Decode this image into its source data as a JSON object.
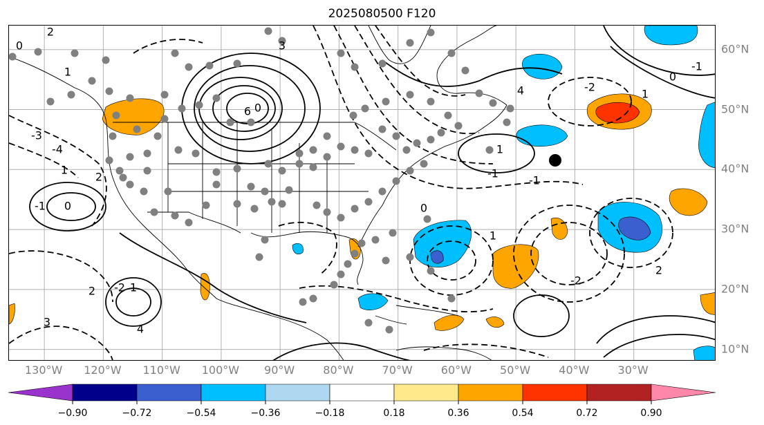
{
  "title": "2025080500 F120",
  "map": {
    "lon_ticks": [
      "130°W",
      "120°W",
      "110°W",
      "100°W",
      "90°W",
      "80°W",
      "70°W",
      "60°W",
      "50°W",
      "40°W",
      "30°W"
    ],
    "lat_ticks": [
      "60°N",
      "50°N",
      "40°N",
      "30°N",
      "20°N",
      "10°N"
    ],
    "lon_values": [
      -130,
      -120,
      -110,
      -100,
      -90,
      -80,
      -70,
      -60,
      -50,
      -40,
      -30
    ],
    "lat_values": [
      60,
      50,
      40,
      30,
      20,
      10
    ],
    "extent": {
      "lon_min": -136,
      "lon_max": -16,
      "lat_min": 8,
      "lat_max": 64
    },
    "contour_labels": [
      "0",
      "1",
      "2",
      "3",
      "4",
      "6",
      "0",
      "-1",
      "-2",
      "-3",
      "-4",
      "1",
      "2",
      "0",
      "-1",
      "1",
      "-2",
      "2",
      "3",
      "4",
      "0",
      "1",
      "-1",
      "-2",
      "1",
      "0",
      "-1",
      "1",
      "2"
    ],
    "marker": "black-dot"
  },
  "colorbar": {
    "colors": [
      "#9933cc",
      "#00008b",
      "#3b5fcf",
      "#00bfff",
      "#add8f0",
      "#ffffff",
      "#ffe98a",
      "#ffa500",
      "#ff3300",
      "#b22222",
      "#ff88aa"
    ],
    "ticks": [
      "−0.90",
      "−0.72",
      "−0.54",
      "−0.36",
      "−0.18",
      "0.18",
      "0.36",
      "0.54",
      "0.72",
      "0.90"
    ]
  }
}
